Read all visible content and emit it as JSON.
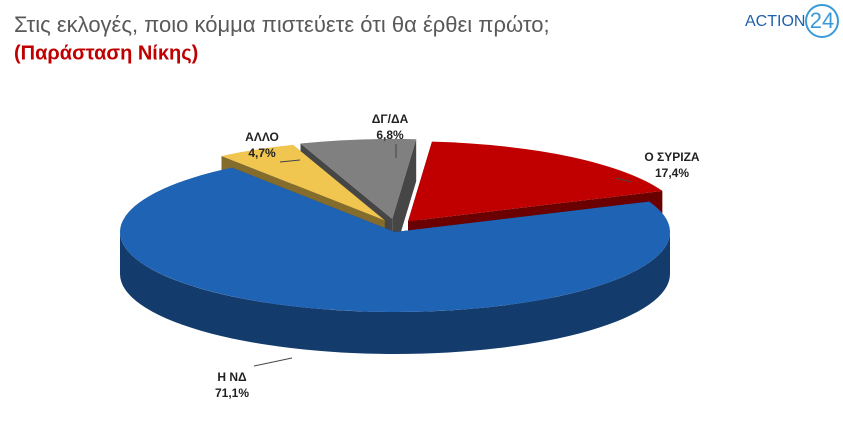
{
  "logo": {
    "text": "ACTION",
    "number": "24"
  },
  "chart_data": {
    "type": "pie",
    "title": "Στις εκλογές, ποιο κόμμα πιστεύετε ότι θα έρθει πρώτο;",
    "subtitle": "(Παράσταση Νίκης)",
    "categories": [
      "Ο ΣΥΡΙΖΑ",
      "Η ΝΔ",
      "ΑΛΛΟ",
      "ΔΓ/ΔΑ"
    ],
    "values": [
      17.4,
      71.1,
      4.7,
      6.8
    ],
    "value_labels": [
      "17,4%",
      "71,1%",
      "4,7%",
      "6,8%"
    ],
    "colors": [
      "#c00000",
      "#1f63b4",
      "#f0c550",
      "#808080"
    ]
  }
}
